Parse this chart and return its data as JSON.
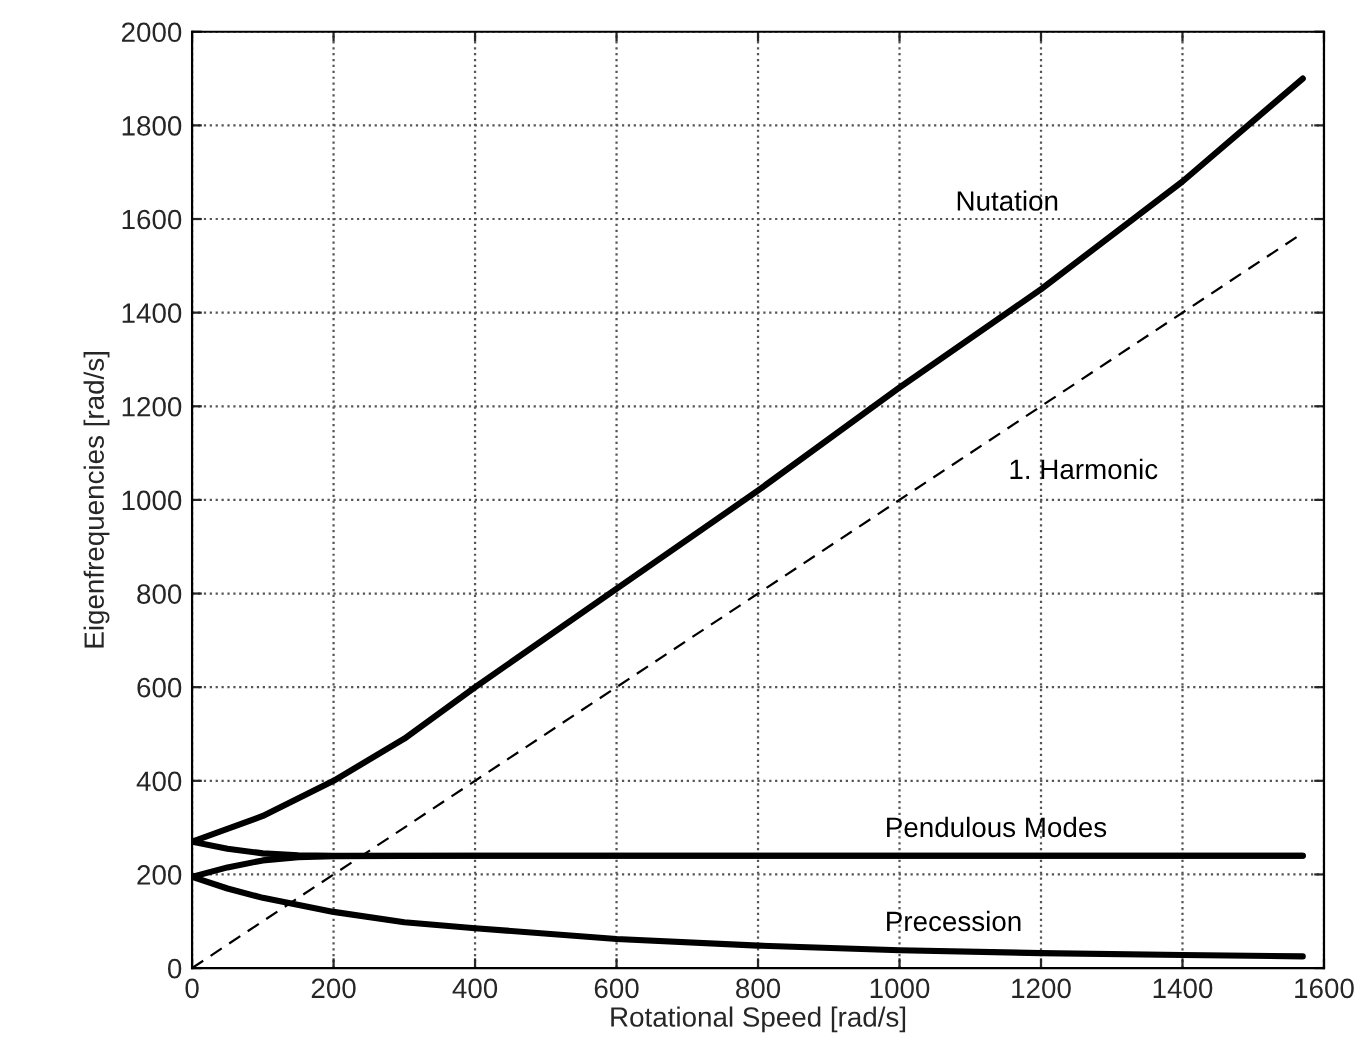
{
  "chart_data": {
    "type": "line",
    "xlabel": "Rotational Speed [rad/s]",
    "ylabel": "Eigenfrequencies [rad/s]",
    "xlim": [
      0,
      1600
    ],
    "ylim": [
      0,
      2000
    ],
    "xticks": [
      0,
      200,
      400,
      600,
      800,
      1000,
      1200,
      1400,
      1600
    ],
    "yticks": [
      0,
      200,
      400,
      600,
      800,
      1000,
      1200,
      1400,
      1600,
      1800,
      2000
    ],
    "grid": true,
    "series": [
      {
        "name": "Nutation",
        "color": "#000000",
        "line_style": "solid",
        "x": [
          0,
          100,
          200,
          300,
          400,
          600,
          800,
          1000,
          1200,
          1400,
          1570
        ],
        "values": [
          270,
          325,
          400,
          490,
          600,
          810,
          1020,
          1240,
          1450,
          1680,
          1900
        ]
      },
      {
        "name": "Pendulous Modes",
        "color": "#000000",
        "line_style": "solid",
        "x": [
          0,
          50,
          100,
          150,
          200,
          400,
          800,
          1200,
          1570
        ],
        "values": [
          270,
          255,
          245,
          241,
          240,
          240,
          240,
          240,
          240
        ]
      },
      {
        "color": "#000000",
        "line_style": "solid",
        "x": [
          0,
          50,
          100,
          150,
          200,
          400,
          800,
          1200,
          1570
        ],
        "values": [
          195,
          215,
          230,
          237,
          239,
          240,
          240,
          240,
          240
        ]
      },
      {
        "name": "Precession",
        "color": "#000000",
        "line_style": "solid",
        "x": [
          0,
          50,
          100,
          200,
          300,
          400,
          600,
          800,
          1000,
          1200,
          1400,
          1570
        ],
        "values": [
          195,
          170,
          150,
          120,
          98,
          85,
          62,
          48,
          38,
          32,
          28,
          25
        ]
      },
      {
        "name": "1. Harmonic",
        "color": "#000000",
        "line_style": "dashed",
        "x": [
          0,
          1570
        ],
        "values": [
          0,
          1570
        ]
      }
    ]
  }
}
